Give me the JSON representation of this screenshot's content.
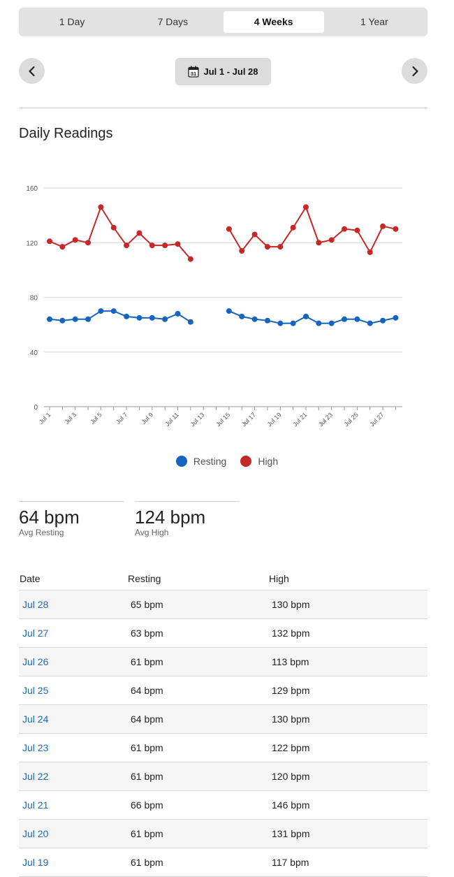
{
  "tabs": [
    {
      "label": "1 Day",
      "active": false
    },
    {
      "label": "7 Days",
      "active": false
    },
    {
      "label": "4 Weeks",
      "active": true
    },
    {
      "label": "1 Year",
      "active": false
    }
  ],
  "range": {
    "label": "Jul 1 - Jul 28",
    "calendar_day": "31"
  },
  "section_title": "Daily Readings",
  "chart_data": {
    "type": "line",
    "categories": [
      "Jul 1",
      "Jul 2",
      "Jul 3",
      "Jul 4",
      "Jul 5",
      "Jul 6",
      "Jul 7",
      "Jul 8",
      "Jul 9",
      "Jul 10",
      "Jul 11",
      "Jul 12",
      "Jul 13",
      "Jul 14",
      "Jul 15",
      "Jul 16",
      "Jul 17",
      "Jul 18",
      "Jul 19",
      "Jul 20",
      "Jul 21",
      "Jul 22",
      "Jul 23",
      "Jul 24",
      "Jul 25",
      "Jul 26",
      "Jul 27",
      "Jul 28"
    ],
    "x_tick_labels": [
      "Jul 1",
      "Jul 3",
      "Jul 5",
      "Jul 7",
      "Jul 9",
      "Jul 11",
      "Jul 13",
      "Jul 15",
      "Jul 17",
      "Jul 19",
      "Jul 21",
      "Jul 23",
      "Jul 25",
      "Jul 27"
    ],
    "yticks": [
      0,
      40,
      80,
      120,
      160
    ],
    "ylim": [
      0,
      160
    ],
    "grid": true,
    "legend_position": "bottom",
    "series": [
      {
        "name": "Resting",
        "color": "#1565c0",
        "values": [
          64,
          63,
          64,
          64,
          70,
          70,
          66,
          65,
          65,
          64,
          68,
          62,
          null,
          null,
          70,
          66,
          64,
          63,
          61,
          61,
          66,
          61,
          61,
          64,
          64,
          61,
          63,
          65
        ]
      },
      {
        "name": "High",
        "color": "#c62828",
        "values": [
          121,
          117,
          122,
          120,
          146,
          131,
          118,
          127,
          118,
          118,
          119,
          108,
          null,
          null,
          130,
          114,
          126,
          117,
          117,
          131,
          146,
          120,
          122,
          130,
          129,
          113,
          132,
          130
        ]
      }
    ]
  },
  "stats": [
    {
      "value": "64 bpm",
      "label": "Avg Resting"
    },
    {
      "value": "124 bpm",
      "label": "Avg High"
    }
  ],
  "table": {
    "headers": [
      "Date",
      "Resting",
      "High"
    ],
    "rows": [
      {
        "date": "Jul 28",
        "resting": "65 bpm",
        "high": "130 bpm"
      },
      {
        "date": "Jul 27",
        "resting": "63 bpm",
        "high": "132 bpm"
      },
      {
        "date": "Jul 26",
        "resting": "61 bpm",
        "high": "113 bpm"
      },
      {
        "date": "Jul 25",
        "resting": "64 bpm",
        "high": "129 bpm"
      },
      {
        "date": "Jul 24",
        "resting": "64 bpm",
        "high": "130 bpm"
      },
      {
        "date": "Jul 23",
        "resting": "61 bpm",
        "high": "122 bpm"
      },
      {
        "date": "Jul 22",
        "resting": "61 bpm",
        "high": "120 bpm"
      },
      {
        "date": "Jul 21",
        "resting": "66 bpm",
        "high": "146 bpm"
      },
      {
        "date": "Jul 20",
        "resting": "61 bpm",
        "high": "131 bpm"
      },
      {
        "date": "Jul 19",
        "resting": "61 bpm",
        "high": "117 bpm"
      }
    ]
  }
}
